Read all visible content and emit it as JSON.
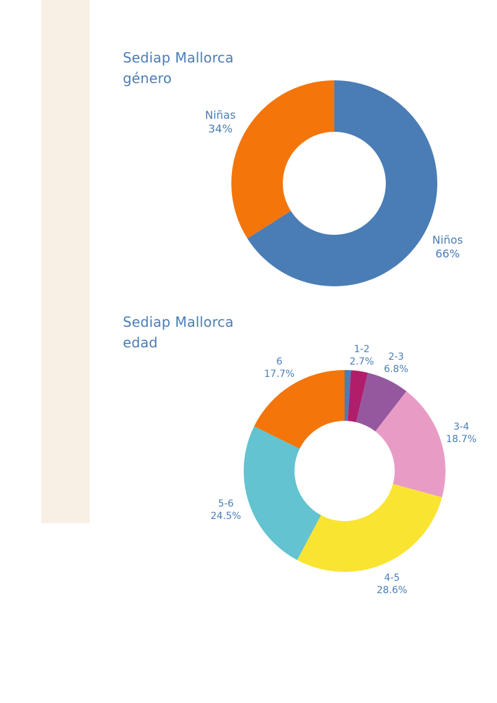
{
  "theme": {
    "text_color": "#4a7db5",
    "band_color": "#f8f0e5"
  },
  "chart_data": [
    {
      "type": "pie",
      "donut": true,
      "title": [
        "Sediap Mallorca",
        "género"
      ],
      "slices": [
        {
          "label": "Niños",
          "value": 66,
          "display": "66%",
          "color": "#4a7db5"
        },
        {
          "label": "Niñas",
          "value": 34,
          "display": "34%",
          "color": "#f4750a"
        }
      ]
    },
    {
      "type": "pie",
      "donut": true,
      "title": [
        "Sediap Mallorca",
        "edad"
      ],
      "slices": [
        {
          "label": "",
          "value": 1.0,
          "display": "",
          "color": "#4a7db5"
        },
        {
          "label": "1-2",
          "value": 2.7,
          "display": "2.7%",
          "color": "#b01e6b"
        },
        {
          "label": "2-3",
          "value": 6.8,
          "display": "6.8%",
          "color": "#95589f"
        },
        {
          "label": "3-4",
          "value": 18.7,
          "display": "18.7%",
          "color": "#e89cc5"
        },
        {
          "label": "4-5",
          "value": 28.6,
          "display": "28.6%",
          "color": "#fae432"
        },
        {
          "label": "5-6",
          "value": 24.5,
          "display": "24.5%",
          "color": "#63c3d0"
        },
        {
          "label": "6",
          "value": 17.7,
          "display": "17.7%",
          "color": "#f4750a"
        }
      ]
    }
  ]
}
